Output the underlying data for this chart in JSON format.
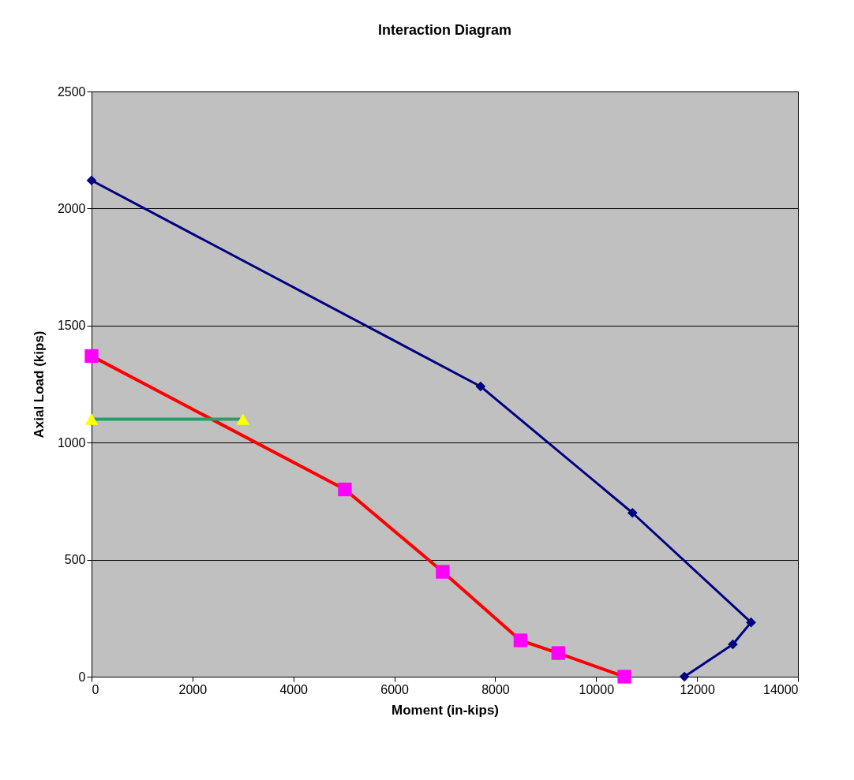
{
  "chart_data": {
    "type": "line",
    "title": "Interaction Diagram",
    "xlabel": "Moment (in-kips)",
    "ylabel": "Axial Load (kips)",
    "xlim": [
      0,
      14000
    ],
    "xticks": [
      0,
      2000,
      4000,
      6000,
      8000,
      10000,
      12000,
      14000
    ],
    "ylim": [
      0,
      2500
    ],
    "yticks": [
      0,
      500,
      1000,
      1500,
      2000,
      2500
    ],
    "grid": "y",
    "series": [
      {
        "color": "#000080",
        "marker": "diamond",
        "colors": [
          "#000080",
          "#000080",
          "#000080",
          "#000080",
          "#000080",
          "#000080"
        ],
        "x": [
          0,
          7710,
          10720,
          13070,
          12710,
          11750
        ],
        "values": [
          2120,
          1240,
          700,
          232,
          138,
          0
        ]
      },
      {
        "color": "#ff0000",
        "marker": "square",
        "colors": [
          "#ff00ff",
          "#ff00ff",
          "#ff00ff",
          "#ff00ff",
          "#ff00ff",
          "#ff00ff"
        ],
        "x": [
          0,
          5020,
          6960,
          8500,
          9250,
          10560
        ],
        "values": [
          1370,
          800,
          448,
          155,
          101,
          0
        ]
      },
      {
        "color": "#339966",
        "marker": "triangle",
        "colors": [
          "#ffff00",
          "#ffff00"
        ],
        "x": [
          0,
          3000
        ],
        "values": [
          1100,
          1100
        ]
      }
    ]
  }
}
